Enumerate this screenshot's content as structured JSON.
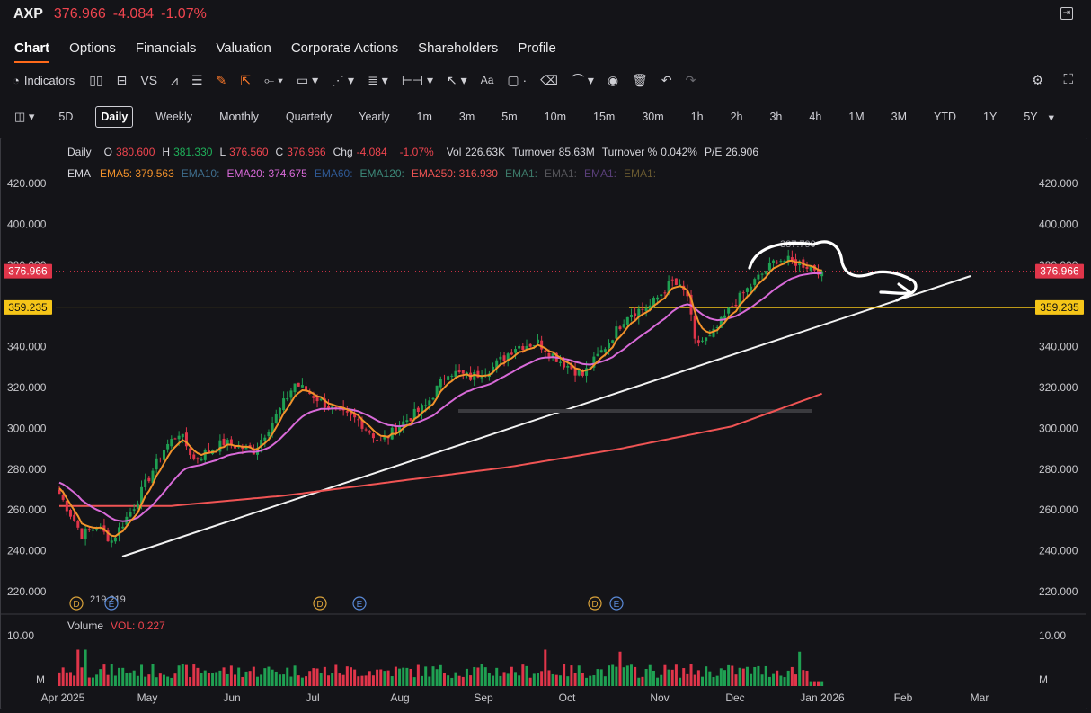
{
  "header": {
    "symbol": "AXP",
    "price": "376.966",
    "change": "-4.084",
    "change_pct": "-1.07%"
  },
  "nav": {
    "tabs": [
      "Chart",
      "Options",
      "Financials",
      "Valuation",
      "Corporate Actions",
      "Shareholders",
      "Profile"
    ],
    "active": "Chart"
  },
  "toolbar": {
    "indicators_label": "Indicators",
    "vs_label": "VS",
    "text_tool_label": "Aa"
  },
  "timeframes": {
    "items": [
      "5D",
      "Daily",
      "Weekly",
      "Monthly",
      "Quarterly",
      "Yearly",
      "1m",
      "3m",
      "5m",
      "10m",
      "15m",
      "30m",
      "1h",
      "2h",
      "3h",
      "4h",
      "1M",
      "3M",
      "YTD",
      "1Y",
      "5Y"
    ],
    "active": "Daily"
  },
  "ohlc_legend": {
    "period": "Daily",
    "o_label": "O",
    "o": "380.600",
    "h_label": "H",
    "h": "381.330",
    "l_label": "L",
    "l": "376.560",
    "c_label": "C",
    "c": "376.966",
    "chg_label": "Chg",
    "chg": "-4.084",
    "chg_pct": "-1.07%",
    "vol_label": "Vol",
    "vol": "226.63K",
    "turnover_label": "Turnover",
    "turnover": "85.63M",
    "turnover_pct_label": "Turnover %",
    "turnover_pct": "0.042%",
    "pe_label": "P/E",
    "pe": "26.906"
  },
  "ema_legend": {
    "label": "EMA",
    "ema5": "EMA5: 379.563",
    "ema10": "EMA10:",
    "ema20": "EMA20: 374.675",
    "ema60": "EMA60:",
    "ema120": "EMA120:",
    "ema250": "EMA250: 316.930",
    "ema1a": "EMA1:",
    "ema1b": "EMA1:",
    "ema1c": "EMA1:",
    "ema1d": "EMA1:"
  },
  "volume_legend": {
    "label": "Volume",
    "vol": "VOL: 0.227"
  },
  "colors": {
    "up": "#1fa052",
    "down": "#e0354a",
    "ema5": "#f2922b",
    "ema20": "#d86ad8",
    "ema250": "#f05454",
    "hline": "#f5c518",
    "bg": "#141418"
  },
  "chart_data": {
    "type": "candlestick",
    "y_ticks": [
      "420.000",
      "400.000",
      "380.000",
      "360.000",
      "340.000",
      "320.000",
      "300.000",
      "280.000",
      "260.000",
      "240.000",
      "220.000"
    ],
    "ylim": [
      214,
      428
    ],
    "x_labels": [
      "Apr 2025",
      "May",
      "Jun",
      "Jul",
      "Aug",
      "Sep",
      "Oct",
      "Nov",
      "Dec",
      "Jan 2026",
      "Feb",
      "Mar"
    ],
    "price_label": "376.966",
    "hline_label": "359.235",
    "hline_value": 359.235,
    "high_annotation": "387.790",
    "low_annotation": "219.219",
    "event_markers": [
      "D",
      "E",
      "D",
      "E",
      "D",
      "E"
    ],
    "volume_ticks": [
      "10.00",
      "M",
      "10.00",
      "M"
    ],
    "close_anchors": [
      [
        0,
        268
      ],
      [
        6,
        248
      ],
      [
        10,
        252
      ],
      [
        14,
        245
      ],
      [
        20,
        262
      ],
      [
        28,
        290
      ],
      [
        32,
        298
      ],
      [
        36,
        285
      ],
      [
        44,
        293
      ],
      [
        52,
        289
      ],
      [
        58,
        306
      ],
      [
        63,
        322
      ],
      [
        68,
        316
      ],
      [
        74,
        308
      ],
      [
        80,
        304
      ],
      [
        86,
        293
      ],
      [
        92,
        303
      ],
      [
        98,
        311
      ],
      [
        104,
        328
      ],
      [
        110,
        325
      ],
      [
        116,
        330
      ],
      [
        122,
        340
      ],
      [
        128,
        342
      ],
      [
        134,
        333
      ],
      [
        140,
        326
      ],
      [
        146,
        340
      ],
      [
        152,
        356
      ],
      [
        158,
        360
      ],
      [
        164,
        372
      ],
      [
        168,
        365
      ],
      [
        170,
        342
      ],
      [
        174,
        344
      ],
      [
        180,
        360
      ],
      [
        186,
        372
      ],
      [
        192,
        383
      ],
      [
        198,
        381
      ],
      [
        204,
        377
      ]
    ],
    "ema250_anchors": [
      [
        0,
        262
      ],
      [
        30,
        262
      ],
      [
        60,
        267
      ],
      [
        90,
        274
      ],
      [
        120,
        281
      ],
      [
        150,
        290
      ],
      [
        180,
        301
      ],
      [
        204,
        317
      ]
    ]
  }
}
